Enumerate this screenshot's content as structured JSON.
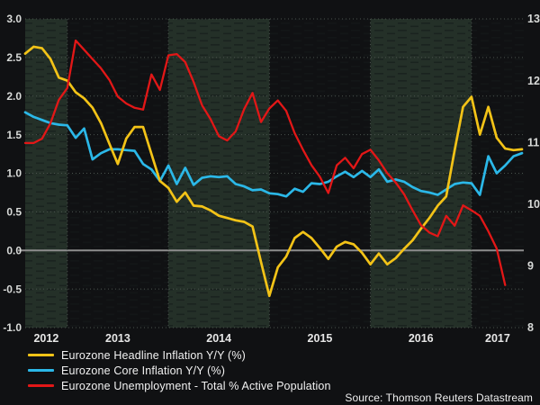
{
  "colors": {
    "background": "#101113",
    "band": "#243028",
    "band_dash": "#1a231f",
    "grid_dotted": "#4a524d",
    "zero_line": "#8d8d8d",
    "axis_text": "#d8dad8",
    "year_text": "#e6e6e6",
    "headline_yellow": "#f3c317",
    "core_cyan": "#2bb8e8",
    "unemployment_red": "#e21717"
  },
  "chart_data": {
    "type": "line",
    "title": "",
    "x_frequency": "monthly",
    "n_points": 60,
    "x_tick_labels": [
      "2012",
      "2013",
      "2014",
      "2015",
      "2016",
      "2017"
    ],
    "january_point_indices": [
      5,
      17,
      29,
      41,
      53
    ],
    "shaded_year_bands": [
      "2012",
      "2014",
      "2016"
    ],
    "grid": true,
    "legend_position": "bottom-left",
    "left_axis": {
      "min": -1.0,
      "max": 3.0,
      "tick_labels": [
        "3.0",
        "2.5",
        "2.0",
        "1.5",
        "1.0",
        "0.5",
        "0.0",
        "-0.5",
        "-1.0"
      ]
    },
    "right_axis": {
      "min": 8,
      "max": 13,
      "tick_labels": [
        "13",
        "12",
        "11",
        "10",
        "9",
        "8"
      ]
    },
    "series": [
      {
        "name": "Eurozone Headline Inflation Y/Y (%)",
        "color": "#f3c317",
        "axis": "left",
        "values": [
          2.55,
          2.64,
          2.62,
          2.48,
          2.24,
          2.2,
          2.05,
          1.97,
          1.85,
          1.65,
          1.38,
          1.12,
          1.45,
          1.6,
          1.6,
          1.25,
          0.9,
          0.81,
          0.63,
          0.75,
          0.58,
          0.57,
          0.52,
          0.45,
          0.42,
          0.39,
          0.37,
          0.31,
          -0.15,
          -0.59,
          -0.22,
          -0.08,
          0.16,
          0.24,
          0.16,
          0.03,
          -0.11,
          0.05,
          0.11,
          0.08,
          -0.03,
          -0.18,
          -0.04,
          -0.18,
          -0.1,
          0.02,
          0.13,
          0.28,
          0.42,
          0.58,
          0.7,
          1.3,
          1.86,
          1.99,
          1.5,
          1.86,
          1.46,
          1.32,
          1.3,
          1.31
        ]
      },
      {
        "name": "Eurozone Core Inflation Y/Y (%)",
        "color": "#2bb8e8",
        "axis": "left",
        "values": [
          1.79,
          1.73,
          1.69,
          1.65,
          1.63,
          1.62,
          1.46,
          1.58,
          1.18,
          1.26,
          1.31,
          1.31,
          1.3,
          1.29,
          1.12,
          1.05,
          0.9,
          1.1,
          0.86,
          1.07,
          0.85,
          0.94,
          0.96,
          0.95,
          0.96,
          0.86,
          0.83,
          0.78,
          0.79,
          0.74,
          0.73,
          0.7,
          0.8,
          0.76,
          0.87,
          0.86,
          0.89,
          0.96,
          1.02,
          0.95,
          1.03,
          0.95,
          1.05,
          0.89,
          0.92,
          0.89,
          0.82,
          0.77,
          0.75,
          0.72,
          0.79,
          0.86,
          0.88,
          0.87,
          0.72,
          1.22,
          1.0,
          1.1,
          1.22,
          1.26
        ]
      },
      {
        "name": "Eurozone Unemployment - Total % Active Population",
        "color": "#e21717",
        "axis": "right",
        "values": [
          10.99,
          10.99,
          11.06,
          11.31,
          11.69,
          11.88,
          12.65,
          12.5,
          12.35,
          12.2,
          12.01,
          11.74,
          11.63,
          11.56,
          11.53,
          12.1,
          11.85,
          12.41,
          12.43,
          12.3,
          11.98,
          11.6,
          11.38,
          11.1,
          11.03,
          11.18,
          11.54,
          11.8,
          11.33,
          11.55,
          11.68,
          11.51,
          11.15,
          10.88,
          10.63,
          10.44,
          10.18,
          10.63,
          10.75,
          10.58,
          10.81,
          10.88,
          10.71,
          10.5,
          10.35,
          10.16,
          9.9,
          9.66,
          9.54,
          9.48,
          9.81,
          9.65,
          9.98,
          9.9,
          9.81,
          9.56,
          9.28,
          8.69,
          null,
          null
        ]
      }
    ],
    "source": "Source: Thomson Reuters Datastream"
  }
}
